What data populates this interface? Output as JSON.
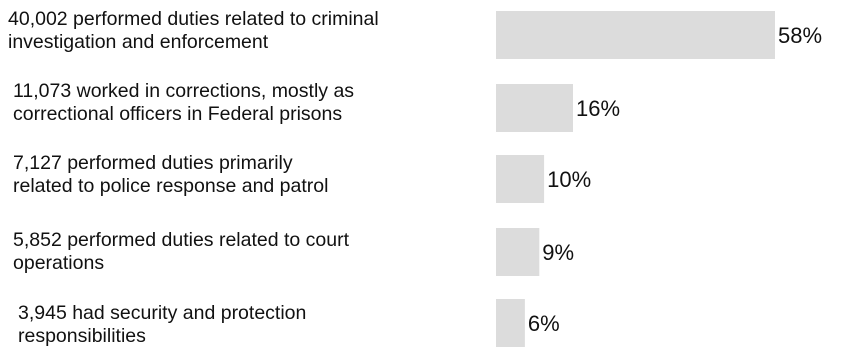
{
  "colors": {
    "bar": "#dcdcdc",
    "text": "#111111",
    "background": "#ffffff"
  },
  "chart_data": {
    "type": "bar",
    "orientation": "horizontal",
    "grid": false,
    "legend": "none",
    "xlim": [
      0,
      58
    ],
    "categories": [
      [
        "40,002 performed duties related to criminal",
        "investigation and enforcement"
      ],
      [
        "11,073 worked in corrections, mostly as",
        "correctional officers in Federal prisons"
      ],
      [
        "7,127 performed duties primarily",
        "related to police response and patrol"
      ],
      [
        "5,852 performed duties related to court",
        "operations"
      ],
      [
        "3,945 had security and protection",
        "responsibilities"
      ]
    ],
    "values": [
      58,
      16,
      10,
      9,
      6
    ],
    "value_labels": [
      "58%",
      "16%",
      "10%",
      "9%",
      "6%"
    ]
  }
}
